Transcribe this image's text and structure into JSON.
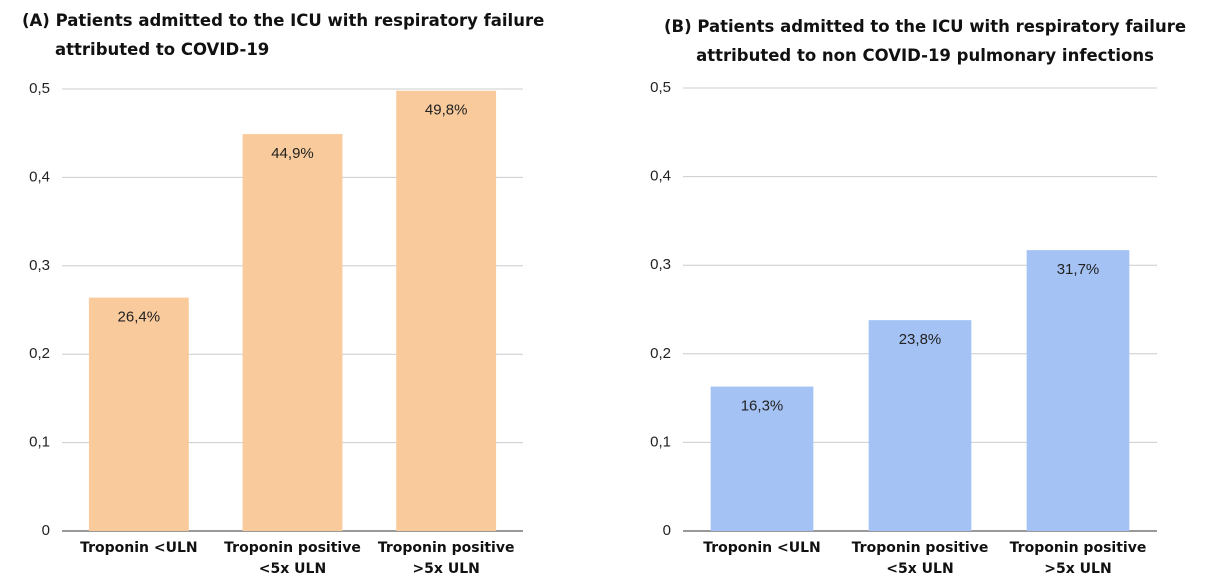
{
  "chart_data": [
    {
      "type": "bar",
      "title": "(A) Patients admitted to the ICU with respiratory failure attributed to COVID-19",
      "categories": [
        "Troponin <ULN",
        "Troponin positive <5x ULN",
        "Troponin positive >5x ULN"
      ],
      "values": [
        0.264,
        0.449,
        0.498
      ],
      "value_labels": [
        "26,4%",
        "44,9%",
        "49,8%"
      ],
      "color": "#f9cb9c",
      "ylim": [
        0,
        0.5
      ],
      "yticks": [
        0,
        {
          "value": 0.1,
          "label": "0,1"
        },
        {
          "value": 0.2,
          "label": "0,2"
        },
        {
          "value": 0.3,
          "label": "0,3"
        },
        {
          "value": 0.4,
          "label": "0,4"
        },
        {
          "value": 0.5,
          "label": "0,5"
        }
      ],
      "grid": true
    },
    {
      "type": "bar",
      "title": "(B) Patients admitted to the ICU with respiratory failure attributed to non COVID-19 pulmonary infections",
      "categories": [
        "Troponin <ULN",
        "Troponin positive <5x ULN",
        "Troponin positive >5x ULN"
      ],
      "values": [
        0.163,
        0.238,
        0.317
      ],
      "value_labels": [
        "16,3%",
        "23,8%",
        "31,7%"
      ],
      "color": "#a4c2f4",
      "ylim": [
        0,
        0.5
      ],
      "yticks": [
        0,
        {
          "value": 0.1,
          "label": "0,1"
        },
        {
          "value": 0.2,
          "label": "0,2"
        },
        {
          "value": 0.3,
          "label": "0,3"
        },
        {
          "value": 0.4,
          "label": "0,4"
        },
        {
          "value": 0.5,
          "label": "0,5"
        }
      ],
      "grid": true
    }
  ]
}
